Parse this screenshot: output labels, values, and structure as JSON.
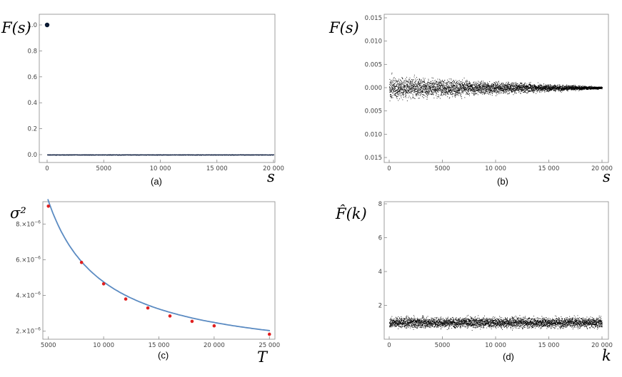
{
  "chart_data": [
    {
      "id": "a",
      "type": "scatter",
      "caption": "(a)",
      "xlabel": "s",
      "ylabel": "F(s)",
      "xlim": [
        0,
        20000
      ],
      "ylim": [
        0,
        1.0
      ],
      "xticks": [
        0,
        5000,
        10000,
        15000,
        20000
      ],
      "xtick_labels": [
        "0",
        "5000",
        "10 000",
        "15 000",
        "20 000"
      ],
      "yticks": [
        0.0,
        0.2,
        0.4,
        0.6,
        0.8,
        1.0
      ],
      "ytick_labels": [
        "0.0",
        "0.2",
        "0.4",
        "0.6",
        "0.8",
        "1.0"
      ],
      "points": [
        {
          "x": 0,
          "y": 1.0
        }
      ],
      "noise": {
        "x_range": [
          1,
          20000
        ],
        "y_center": 0.0,
        "y_spread_start": 0.002,
        "y_spread_end": 0.002,
        "color": "#1a2a4a"
      }
    },
    {
      "id": "b",
      "type": "scatter",
      "caption": "(b)",
      "xlabel": "s",
      "ylabel": "F(s)",
      "xlim": [
        0,
        20000
      ],
      "ylim": [
        -0.015,
        0.015
      ],
      "xticks": [
        0,
        5000,
        10000,
        15000,
        20000
      ],
      "xtick_labels": [
        "0",
        "5000",
        "10 000",
        "15 000",
        "20 000"
      ],
      "yticks": [
        0.015,
        0.01,
        0.005,
        0.0,
        -0.005,
        -0.01,
        -0.015
      ],
      "ytick_labels": [
        "0.015",
        "0.010",
        "0.005",
        "0.000",
        "0.005",
        "0.010",
        "0.015"
      ],
      "noise": {
        "x_range": [
          1,
          20000
        ],
        "y_center": 0.0,
        "y_spread_start": 0.0022,
        "y_spread_end": 0.0002,
        "color": "#000000"
      }
    },
    {
      "id": "c",
      "type": "line",
      "caption": "(c)",
      "xlabel": "T",
      "ylabel": "σ²",
      "xlim": [
        4500,
        25500
      ],
      "ylim": [
        1.55e-06,
        9.25e-06
      ],
      "xticks": [
        5000,
        10000,
        15000,
        20000,
        25000
      ],
      "xtick_labels": [
        "5000",
        "10 000",
        "15 000",
        "20 000",
        "25 000"
      ],
      "yticks": [
        2e-06,
        4e-06,
        6e-06,
        8e-06
      ],
      "ytick_mantissa": [
        "2.",
        "4.",
        "6.",
        "8."
      ],
      "ytick_exp_base": "×10",
      "ytick_exponent": "−6",
      "points": [
        {
          "x": 5000,
          "y": 9e-06
        },
        {
          "x": 8000,
          "y": 5.85e-06
        },
        {
          "x": 10000,
          "y": 4.65e-06
        },
        {
          "x": 12000,
          "y": 3.8e-06
        },
        {
          "x": 14000,
          "y": 3.3e-06
        },
        {
          "x": 16000,
          "y": 2.85e-06
        },
        {
          "x": 18000,
          "y": 2.55e-06
        },
        {
          "x": 20000,
          "y": 2.3e-06
        },
        {
          "x": 25000,
          "y": 1.83e-06
        }
      ],
      "fit": {
        "a": 0.0454,
        "b": 2.18e-07,
        "form": "a/T + b"
      },
      "point_color": "#e02020",
      "line_color": "#5b8bc2"
    },
    {
      "id": "d",
      "type": "scatter",
      "caption": "(d)",
      "xlabel": "k",
      "ylabel": "F̂(k)",
      "xlim": [
        0,
        20000
      ],
      "ylim": [
        0,
        8
      ],
      "xticks": [
        0,
        5000,
        10000,
        15000,
        20000
      ],
      "xtick_labels": [
        "0",
        "5000",
        "10 000",
        "15 000",
        "20 000"
      ],
      "yticks": [
        2,
        4,
        6,
        8
      ],
      "ytick_labels": [
        "2",
        "4",
        "6",
        "8"
      ],
      "noise": {
        "x_range": [
          1,
          20000
        ],
        "y_center": 1.0,
        "y_spread_start": 0.28,
        "y_spread_end": 0.28,
        "color": "#000000"
      }
    }
  ]
}
